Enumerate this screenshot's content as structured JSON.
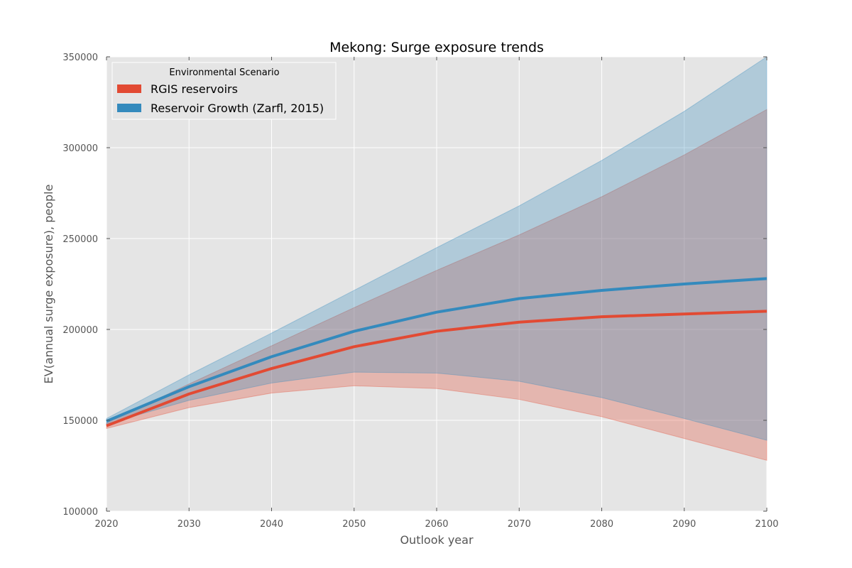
{
  "chart_data": {
    "type": "line",
    "title": "Mekong: Surge exposure trends",
    "xlabel": "Outlook year",
    "ylabel": "EV(annual surge exposure), people",
    "xlim": [
      2020,
      2100
    ],
    "ylim": [
      100000,
      350000
    ],
    "x": [
      2020,
      2030,
      2040,
      2050,
      2060,
      2070,
      2080,
      2090,
      2100
    ],
    "x_ticks": [
      "2020",
      "2030",
      "2040",
      "2050",
      "2060",
      "2070",
      "2080",
      "2090",
      "2100"
    ],
    "y_ticks": [
      "100000",
      "150000",
      "200000",
      "250000",
      "300000",
      "350000"
    ],
    "grid": true,
    "legend": {
      "title": "Environmental Scenario",
      "placement": "top-left"
    },
    "series": [
      {
        "name": "RGIS reservoirs",
        "color": "#E24A33",
        "values": [
          147000,
          164500,
          178500,
          190500,
          199000,
          204000,
          207000,
          208500,
          210000
        ],
        "band_low": [
          145500,
          157000,
          165000,
          169000,
          167500,
          161500,
          152000,
          140000,
          128000
        ],
        "band_high": [
          148500,
          170000,
          191000,
          212000,
          232500,
          252000,
          273000,
          296000,
          321000
        ]
      },
      {
        "name": "Reservoir Growth (Zarfl, 2015)",
        "color": "#348ABD",
        "values": [
          149500,
          168500,
          185000,
          199000,
          209500,
          217000,
          221500,
          225000,
          228000
        ],
        "band_low": [
          148000,
          161000,
          170500,
          176500,
          176000,
          171500,
          162500,
          151000,
          139000
        ],
        "band_high": [
          151000,
          175000,
          198000,
          221500,
          245000,
          268000,
          293000,
          320000,
          350000
        ]
      }
    ]
  }
}
